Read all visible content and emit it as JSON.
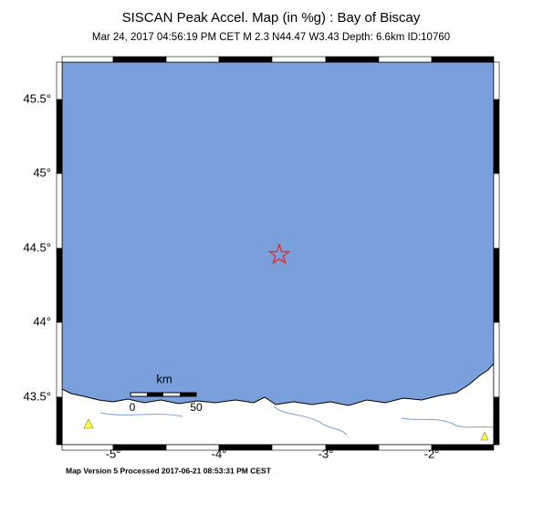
{
  "header": {
    "title": "SISCAN Peak Accel. Map (in %g) : Bay of Biscay",
    "subtitle": "Mar 24, 2017 04:56:19 PM CET   M 2.3   N44.47 W3.43   Depth: 6.6km   ID:10760"
  },
  "map": {
    "lat_labels": [
      "45.5°",
      "45°",
      "44.5°",
      "44°",
      "43.5°"
    ],
    "lon_labels": [
      "-5°",
      "-4°",
      "-3°",
      "-2°"
    ],
    "scale": {
      "unit": "km",
      "labels": [
        "0",
        "50"
      ]
    }
  },
  "footer": "Map Version 5 Processed 2017-06-21 08:53:31 PM CEST"
}
